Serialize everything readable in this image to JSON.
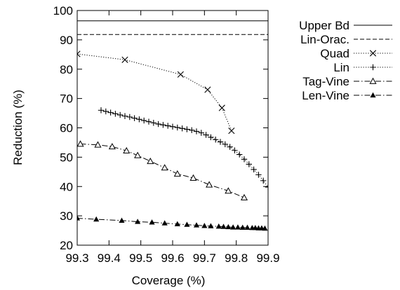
{
  "chart_data": {
    "type": "line",
    "xlabel": "Coverage (%)",
    "ylabel": "Reduction (%)",
    "xlim": [
      99.3,
      99.9
    ],
    "ylim": [
      20,
      100
    ],
    "xticks": [
      "99.3",
      "99.4",
      "99.5",
      "99.6",
      "99.7",
      "99.8",
      "99.9"
    ],
    "yticks": [
      "20",
      "30",
      "40",
      "50",
      "60",
      "70",
      "80",
      "90",
      "100"
    ],
    "legend_position": "right, outside plot",
    "series": [
      {
        "name": "Upper Bd",
        "style": "solid",
        "marker": "none",
        "x": [
          99.3,
          99.9
        ],
        "y": [
          96.5,
          96.5
        ]
      },
      {
        "name": "Lin-Orac.",
        "style": "dashed",
        "marker": "none",
        "x": [
          99.3,
          99.9
        ],
        "y": [
          91.8,
          91.8
        ]
      },
      {
        "name": "Quad",
        "style": "dotted",
        "marker": "x",
        "x": [
          99.3,
          99.45,
          99.625,
          99.71,
          99.755,
          99.785
        ],
        "y": [
          85.2,
          83.2,
          78.2,
          73.0,
          66.8,
          59.0
        ]
      },
      {
        "name": "Lin",
        "style": "dotted",
        "marker": "plus",
        "x": [
          99.375,
          99.39,
          99.405,
          99.42,
          99.435,
          99.45,
          99.465,
          99.48,
          99.495,
          99.51,
          99.525,
          99.54,
          99.555,
          99.57,
          99.585,
          99.6,
          99.615,
          99.63,
          99.645,
          99.66,
          99.675,
          99.69,
          99.705,
          99.72,
          99.735,
          99.75,
          99.765,
          99.78,
          99.795,
          99.81,
          99.825,
          99.84,
          99.855,
          99.87,
          99.885,
          99.9
        ],
        "y": [
          66.0,
          65.6,
          65.2,
          64.8,
          64.4,
          64.0,
          63.7,
          63.3,
          62.9,
          62.5,
          62.1,
          61.7,
          61.3,
          61.0,
          60.7,
          60.4,
          60.1,
          59.8,
          59.5,
          59.2,
          58.8,
          58.3,
          57.6,
          56.8,
          56.0,
          55.2,
          54.4,
          53.5,
          52.3,
          50.9,
          49.3,
          47.6,
          45.8,
          44.0,
          42.0,
          39.8
        ]
      },
      {
        "name": "Tag-Vine",
        "style": "dash-dot",
        "marker": "triangle-open",
        "x": [
          99.31,
          99.365,
          99.41,
          99.455,
          99.49,
          99.53,
          99.575,
          99.615,
          99.665,
          99.715,
          99.775,
          99.825
        ],
        "y": [
          54.5,
          54.2,
          53.6,
          52.2,
          50.6,
          48.6,
          46.4,
          44.3,
          42.9,
          40.6,
          38.5,
          36.2
        ]
      },
      {
        "name": "Len-Vine",
        "style": "dash-dot",
        "marker": "triangle-filled",
        "x": [
          99.3,
          99.36,
          99.44,
          99.49,
          99.535,
          99.575,
          99.615,
          99.645,
          99.675,
          99.7,
          99.72,
          99.745,
          99.76,
          99.775,
          99.79,
          99.805,
          99.82,
          99.835,
          99.85,
          99.86,
          99.87,
          99.88,
          99.89
        ],
        "y": [
          29.2,
          28.8,
          28.4,
          28.0,
          27.8,
          27.5,
          27.2,
          27.0,
          26.8,
          26.6,
          26.5,
          26.4,
          26.3,
          26.2,
          26.1,
          26.1,
          26.0,
          26.0,
          25.9,
          25.9,
          25.8,
          25.8,
          25.7
        ]
      }
    ]
  }
}
